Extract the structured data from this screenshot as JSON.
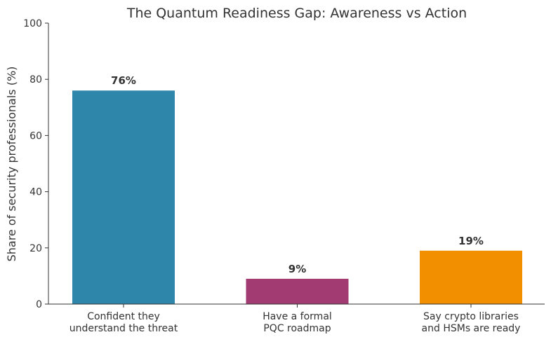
{
  "chart_data": {
    "type": "bar",
    "title": "The Quantum Readiness Gap: Awareness vs Action",
    "xlabel": "",
    "ylabel": "Share of security professionals (%)",
    "ylim": [
      0,
      100
    ],
    "yticks": [
      "0",
      "20",
      "40",
      "60",
      "80",
      "100"
    ],
    "grid": false,
    "categories": [
      [
        "Confident they",
        "understand the threat"
      ],
      [
        "Have a formal",
        "PQC roadmap"
      ],
      [
        "Say crypto libraries",
        "and HSMs are ready"
      ]
    ],
    "values": [
      76,
      9,
      19
    ],
    "value_labels": [
      "76%",
      "9%",
      "19%"
    ],
    "colors": [
      "#2e86ab",
      "#a23b72",
      "#f18f01"
    ]
  }
}
